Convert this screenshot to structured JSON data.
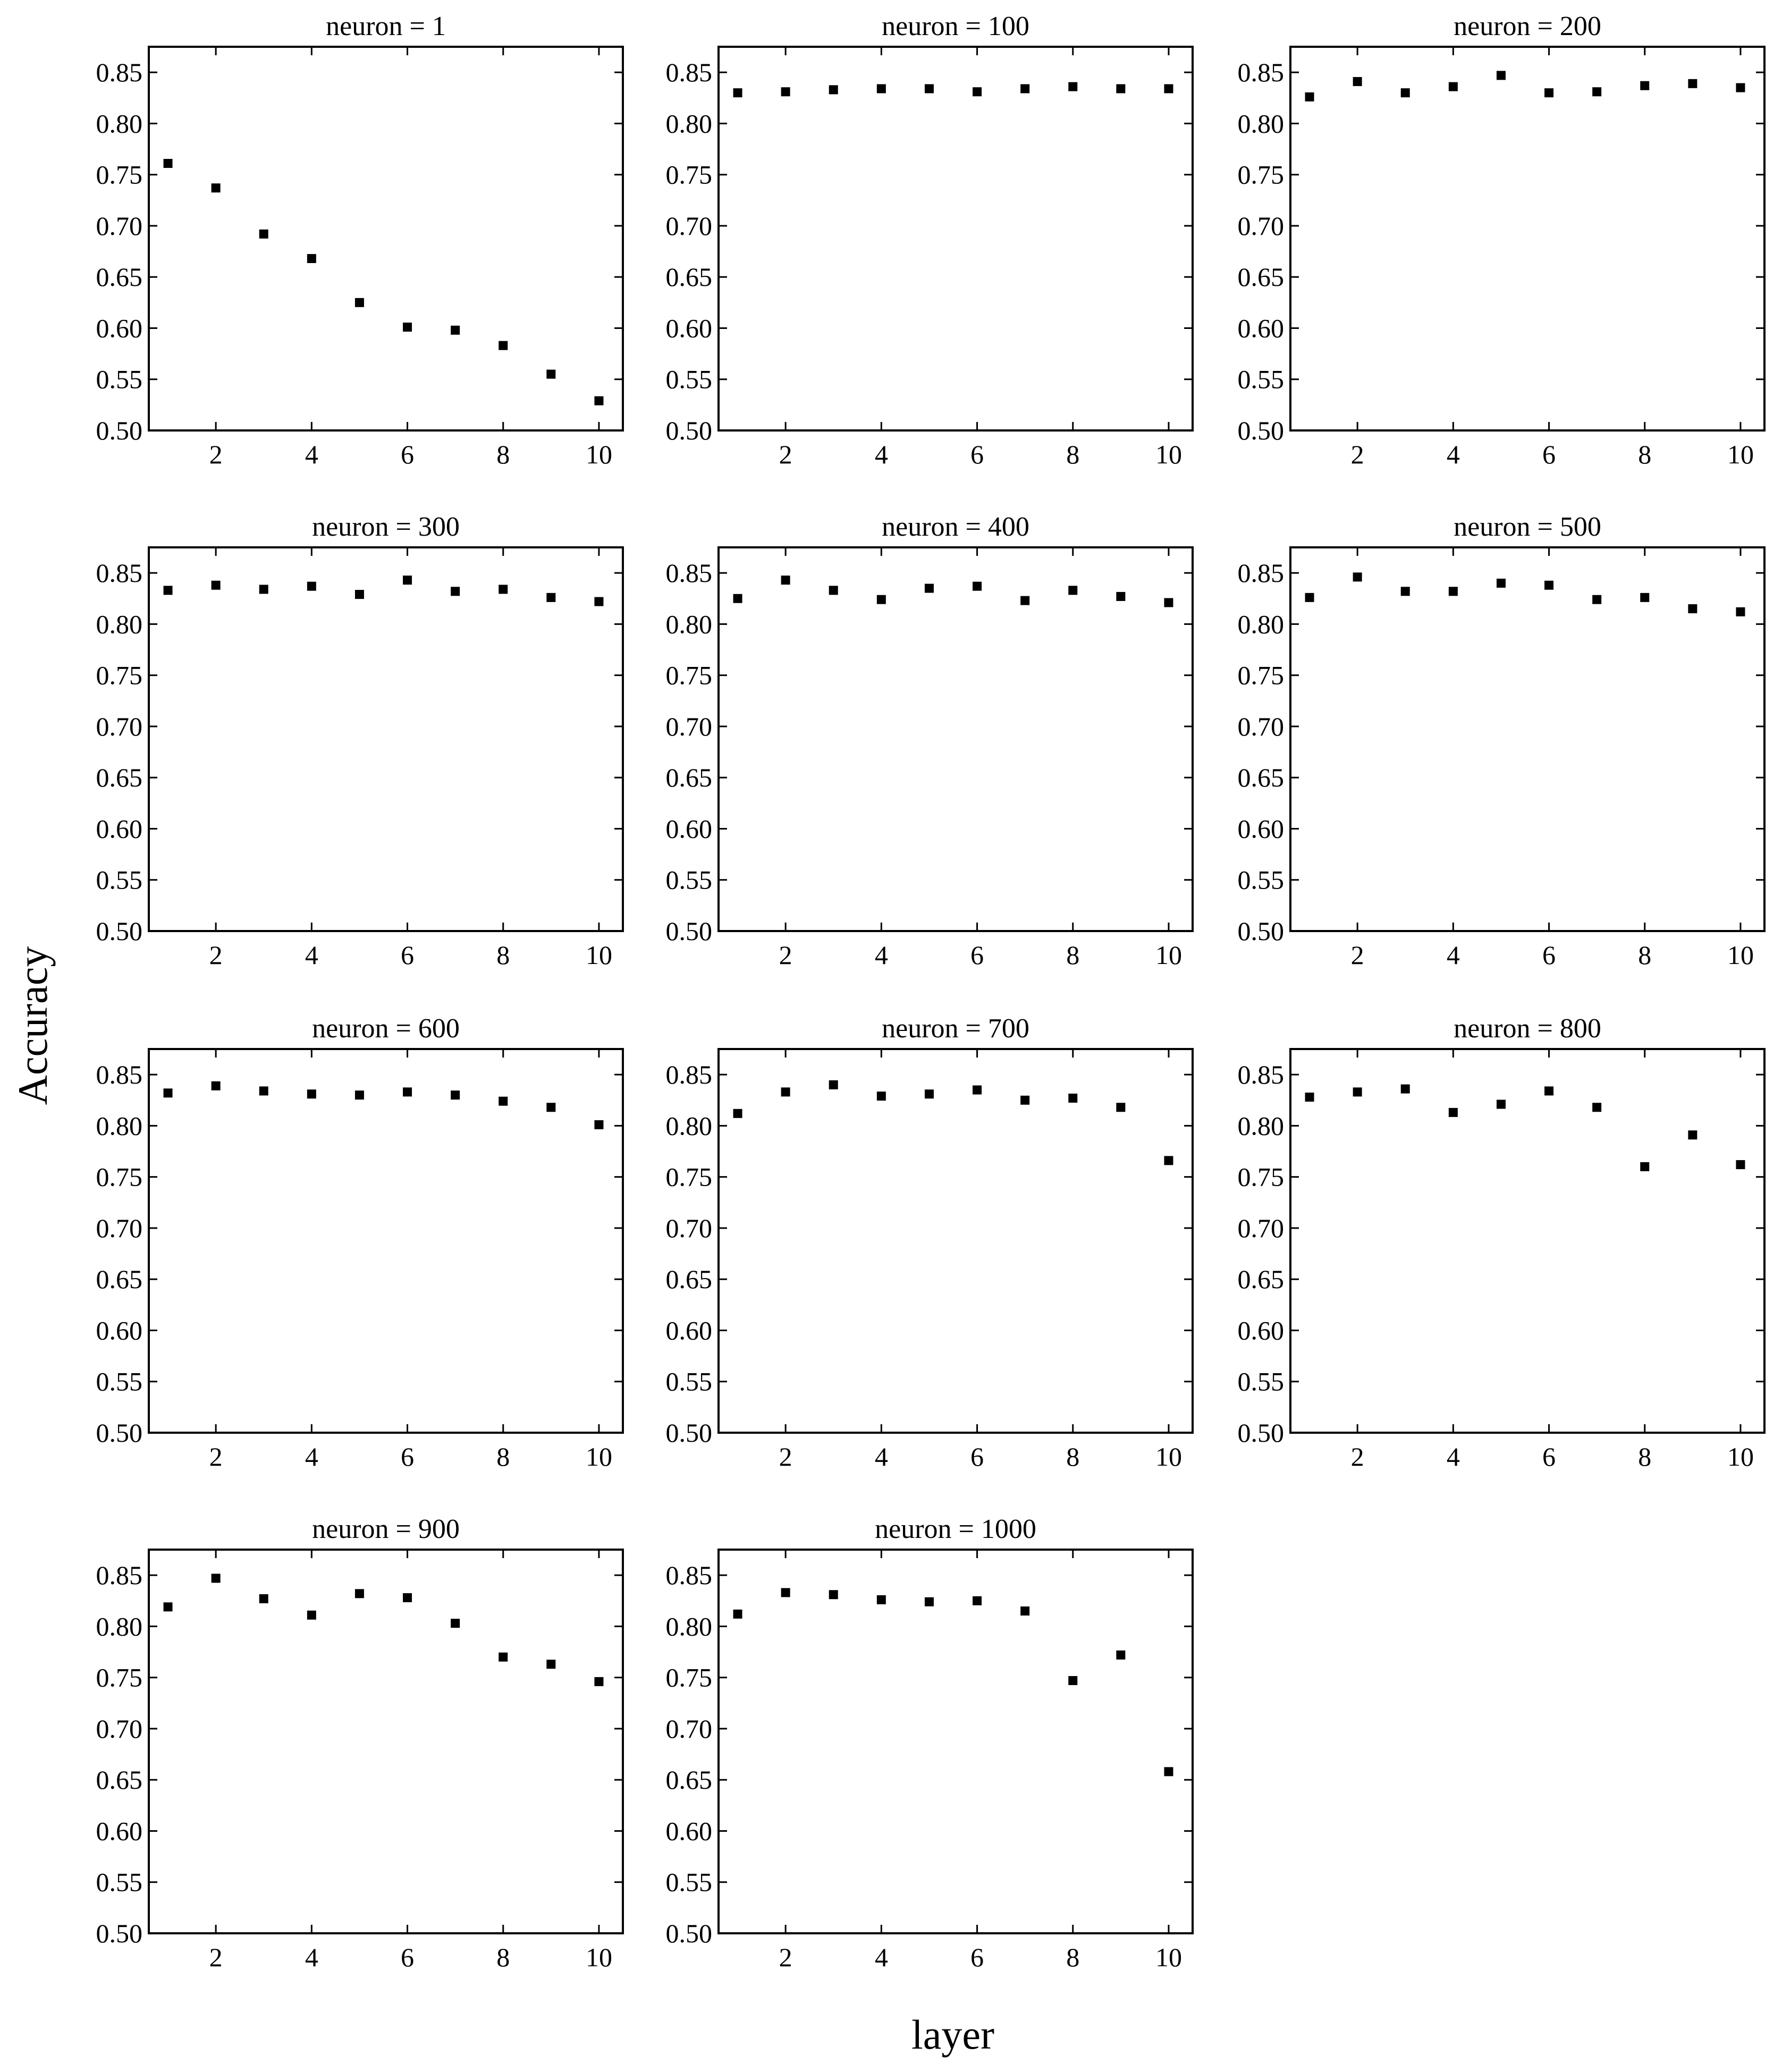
{
  "figure": {
    "xlabel": "layer",
    "ylabel": "Accuracy"
  },
  "chart_data": [
    {
      "type": "scatter",
      "title": "neuron = 1",
      "x": [
        1,
        2,
        3,
        4,
        5,
        6,
        7,
        8,
        9,
        10
      ],
      "y": [
        0.761,
        0.737,
        0.692,
        0.668,
        0.625,
        0.601,
        0.598,
        0.583,
        0.555,
        0.529
      ],
      "xlim": [
        0.6,
        10.5
      ],
      "ylim": [
        0.5,
        0.875
      ],
      "xticks": [
        "2",
        "4",
        "6",
        "8",
        "10"
      ],
      "yticks": [
        "0.50",
        "0.55",
        "0.60",
        "0.65",
        "0.70",
        "0.75",
        "0.80",
        "0.85"
      ],
      "grid": false
    },
    {
      "type": "scatter",
      "title": "neuron = 100",
      "x": [
        1,
        2,
        3,
        4,
        5,
        6,
        7,
        8,
        9,
        10
      ],
      "y": [
        0.83,
        0.831,
        0.833,
        0.834,
        0.834,
        0.831,
        0.834,
        0.836,
        0.834,
        0.834
      ],
      "xlim": [
        0.6,
        10.5
      ],
      "ylim": [
        0.5,
        0.875
      ],
      "xticks": [
        "2",
        "4",
        "6",
        "8",
        "10"
      ],
      "yticks": [
        "0.50",
        "0.55",
        "0.60",
        "0.65",
        "0.70",
        "0.75",
        "0.80",
        "0.85"
      ],
      "grid": false
    },
    {
      "type": "scatter",
      "title": "neuron = 200",
      "x": [
        1,
        2,
        3,
        4,
        5,
        6,
        7,
        8,
        9,
        10
      ],
      "y": [
        0.826,
        0.841,
        0.83,
        0.836,
        0.847,
        0.83,
        0.831,
        0.837,
        0.839,
        0.835
      ],
      "xlim": [
        0.6,
        10.5
      ],
      "ylim": [
        0.5,
        0.875
      ],
      "xticks": [
        "2",
        "4",
        "6",
        "8",
        "10"
      ],
      "yticks": [
        "0.50",
        "0.55",
        "0.60",
        "0.65",
        "0.70",
        "0.75",
        "0.80",
        "0.85"
      ],
      "grid": false
    },
    {
      "type": "scatter",
      "title": "neuron = 300",
      "x": [
        1,
        2,
        3,
        4,
        5,
        6,
        7,
        8,
        9,
        10
      ],
      "y": [
        0.833,
        0.838,
        0.834,
        0.837,
        0.829,
        0.843,
        0.832,
        0.834,
        0.826,
        0.822
      ],
      "xlim": [
        0.6,
        10.5
      ],
      "ylim": [
        0.5,
        0.875
      ],
      "xticks": [
        "2",
        "4",
        "6",
        "8",
        "10"
      ],
      "yticks": [
        "0.50",
        "0.55",
        "0.60",
        "0.65",
        "0.70",
        "0.75",
        "0.80",
        "0.85"
      ],
      "grid": false
    },
    {
      "type": "scatter",
      "title": "neuron = 400",
      "x": [
        1,
        2,
        3,
        4,
        5,
        6,
        7,
        8,
        9,
        10
      ],
      "y": [
        0.825,
        0.843,
        0.833,
        0.824,
        0.835,
        0.837,
        0.823,
        0.833,
        0.827,
        0.821
      ],
      "xlim": [
        0.6,
        10.5
      ],
      "ylim": [
        0.5,
        0.875
      ],
      "xticks": [
        "2",
        "4",
        "6",
        "8",
        "10"
      ],
      "yticks": [
        "0.50",
        "0.55",
        "0.60",
        "0.65",
        "0.70",
        "0.75",
        "0.80",
        "0.85"
      ],
      "grid": false
    },
    {
      "type": "scatter",
      "title": "neuron = 500",
      "x": [
        1,
        2,
        3,
        4,
        5,
        6,
        7,
        8,
        9,
        10
      ],
      "y": [
        0.826,
        0.846,
        0.832,
        0.832,
        0.84,
        0.838,
        0.824,
        0.826,
        0.815,
        0.812
      ],
      "xlim": [
        0.6,
        10.5
      ],
      "ylim": [
        0.5,
        0.875
      ],
      "xticks": [
        "2",
        "4",
        "6",
        "8",
        "10"
      ],
      "yticks": [
        "0.50",
        "0.55",
        "0.60",
        "0.65",
        "0.70",
        "0.75",
        "0.80",
        "0.85"
      ],
      "grid": false
    },
    {
      "type": "scatter",
      "title": "neuron = 600",
      "x": [
        1,
        2,
        3,
        4,
        5,
        6,
        7,
        8,
        9,
        10
      ],
      "y": [
        0.832,
        0.839,
        0.834,
        0.831,
        0.83,
        0.833,
        0.83,
        0.824,
        0.818,
        0.801
      ],
      "xlim": [
        0.6,
        10.5
      ],
      "ylim": [
        0.5,
        0.875
      ],
      "xticks": [
        "2",
        "4",
        "6",
        "8",
        "10"
      ],
      "yticks": [
        "0.50",
        "0.55",
        "0.60",
        "0.65",
        "0.70",
        "0.75",
        "0.80",
        "0.85"
      ],
      "grid": false
    },
    {
      "type": "scatter",
      "title": "neuron = 700",
      "x": [
        1,
        2,
        3,
        4,
        5,
        6,
        7,
        8,
        9,
        10
      ],
      "y": [
        0.812,
        0.833,
        0.84,
        0.829,
        0.831,
        0.835,
        0.825,
        0.827,
        0.818,
        0.766
      ],
      "xlim": [
        0.6,
        10.5
      ],
      "ylim": [
        0.5,
        0.875
      ],
      "xticks": [
        "2",
        "4",
        "6",
        "8",
        "10"
      ],
      "yticks": [
        "0.50",
        "0.55",
        "0.60",
        "0.65",
        "0.70",
        "0.75",
        "0.80",
        "0.85"
      ],
      "grid": false
    },
    {
      "type": "scatter",
      "title": "neuron = 800",
      "x": [
        1,
        2,
        3,
        4,
        5,
        6,
        7,
        8,
        9,
        10
      ],
      "y": [
        0.828,
        0.833,
        0.836,
        0.813,
        0.821,
        0.834,
        0.818,
        0.76,
        0.791,
        0.762
      ],
      "xlim": [
        0.6,
        10.5
      ],
      "ylim": [
        0.5,
        0.875
      ],
      "xticks": [
        "2",
        "4",
        "6",
        "8",
        "10"
      ],
      "yticks": [
        "0.50",
        "0.55",
        "0.60",
        "0.65",
        "0.70",
        "0.75",
        "0.80",
        "0.85"
      ],
      "grid": false
    },
    {
      "type": "scatter",
      "title": "neuron = 900",
      "x": [
        1,
        2,
        3,
        4,
        5,
        6,
        7,
        8,
        9,
        10
      ],
      "y": [
        0.819,
        0.847,
        0.827,
        0.811,
        0.832,
        0.828,
        0.803,
        0.77,
        0.763,
        0.746
      ],
      "xlim": [
        0.6,
        10.5
      ],
      "ylim": [
        0.5,
        0.875
      ],
      "xticks": [
        "2",
        "4",
        "6",
        "8",
        "10"
      ],
      "yticks": [
        "0.50",
        "0.55",
        "0.60",
        "0.65",
        "0.70",
        "0.75",
        "0.80",
        "0.85"
      ],
      "grid": false
    },
    {
      "type": "scatter",
      "title": "neuron = 1000",
      "x": [
        1,
        2,
        3,
        4,
        5,
        6,
        7,
        8,
        9,
        10
      ],
      "y": [
        0.812,
        0.833,
        0.831,
        0.826,
        0.824,
        0.825,
        0.815,
        0.747,
        0.772,
        0.658
      ],
      "xlim": [
        0.6,
        10.5
      ],
      "ylim": [
        0.5,
        0.875
      ],
      "xticks": [
        "2",
        "4",
        "6",
        "8",
        "10"
      ],
      "yticks": [
        "0.50",
        "0.55",
        "0.60",
        "0.65",
        "0.70",
        "0.75",
        "0.80",
        "0.85"
      ],
      "grid": false
    }
  ]
}
